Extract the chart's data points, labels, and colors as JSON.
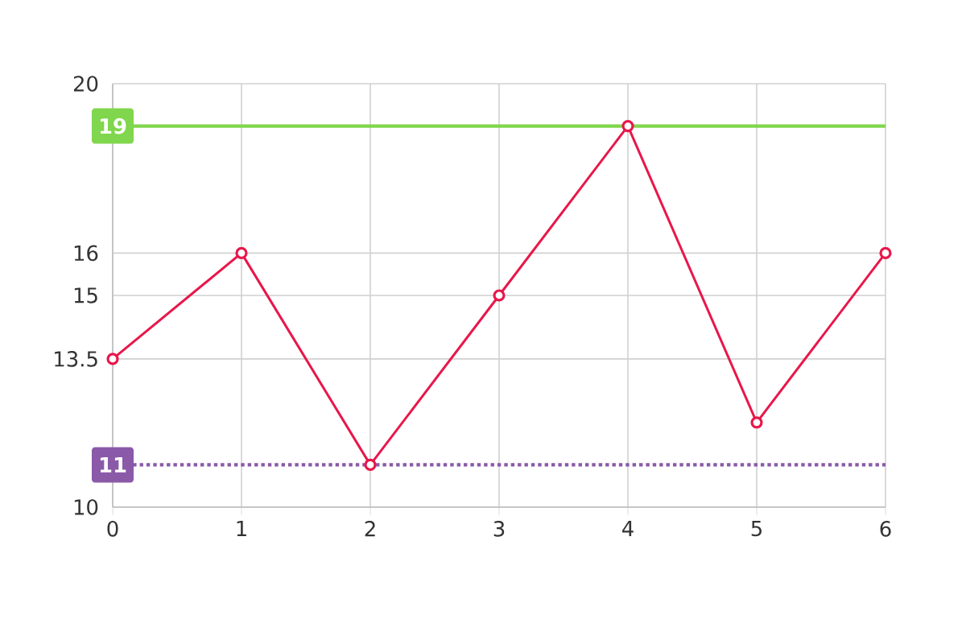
{
  "chart_data": {
    "type": "line",
    "categories": [
      "0",
      "1",
      "2",
      "3",
      "4",
      "5",
      "6"
    ],
    "series": [
      {
        "color": "#e8174a",
        "values": [
          13.5,
          16,
          11,
          15,
          19,
          12,
          16
        ]
      }
    ],
    "ylim": [
      10,
      20
    ],
    "yticks": [
      10,
      13.5,
      15,
      16,
      20
    ],
    "grid": true,
    "marker": "circle",
    "line_style": "solid",
    "ref_lines": [
      {
        "axis": "y",
        "value": 19,
        "label": "19",
        "color": "#80d64c",
        "line_style": "solid"
      },
      {
        "axis": "y",
        "value": 11,
        "label": "11",
        "color": "#8a5aa8",
        "line_style": "dotted"
      }
    ]
  }
}
